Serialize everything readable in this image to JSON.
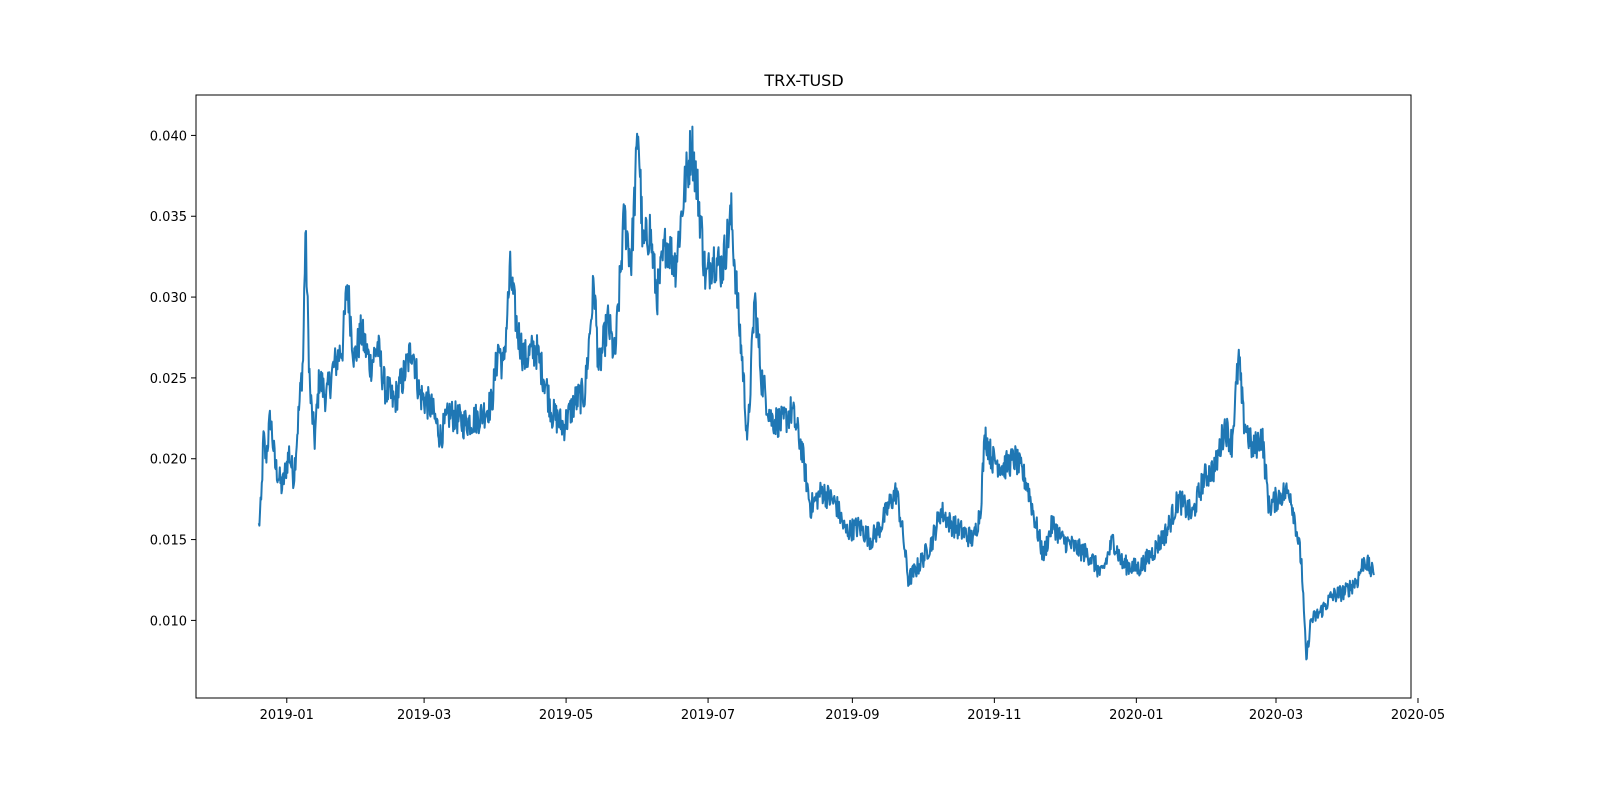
{
  "chart_data": {
    "type": "line",
    "title": "TRX-TUSD",
    "xlabel": "",
    "ylabel": "",
    "x_axis_type": "date",
    "xlim": [
      "2018-11-23",
      "2020-04-28"
    ],
    "ylim": [
      0.0052,
      0.0425
    ],
    "grid": false,
    "legend": "none",
    "x_ticks": [
      "2019-01",
      "2019-03",
      "2019-05",
      "2019-07",
      "2019-09",
      "2019-11",
      "2020-01",
      "2020-03",
      "2020-05"
    ],
    "y_ticks": [
      "0.010",
      "0.015",
      "0.020",
      "0.025",
      "0.030",
      "0.035",
      "0.040"
    ],
    "line_color": "#1f77b4",
    "series": [
      {
        "name": "",
        "points": [
          [
            "2018-12-20",
            0.0158
          ],
          [
            "2018-12-21",
            0.0172
          ],
          [
            "2018-12-22",
            0.0213
          ],
          [
            "2018-12-23",
            0.02
          ],
          [
            "2018-12-25",
            0.0226
          ],
          [
            "2018-12-27",
            0.0196
          ],
          [
            "2018-12-30",
            0.0182
          ],
          [
            "2019-01-02",
            0.0204
          ],
          [
            "2019-01-04",
            0.0188
          ],
          [
            "2019-01-06",
            0.0226
          ],
          [
            "2019-01-08",
            0.0262
          ],
          [
            "2019-01-09",
            0.034
          ],
          [
            "2019-01-11",
            0.024
          ],
          [
            "2019-01-13",
            0.0212
          ],
          [
            "2019-01-15",
            0.025
          ],
          [
            "2019-01-18",
            0.0238
          ],
          [
            "2019-01-21",
            0.0256
          ],
          [
            "2019-01-25",
            0.027
          ],
          [
            "2019-01-27",
            0.0308
          ],
          [
            "2019-01-30",
            0.0262
          ],
          [
            "2019-02-02",
            0.0278
          ],
          [
            "2019-02-06",
            0.0258
          ],
          [
            "2019-02-09",
            0.027
          ],
          [
            "2019-02-12",
            0.0245
          ],
          [
            "2019-02-16",
            0.0235
          ],
          [
            "2019-02-20",
            0.025
          ],
          [
            "2019-02-24",
            0.027
          ],
          [
            "2019-02-27",
            0.024
          ],
          [
            "2019-03-04",
            0.0232
          ],
          [
            "2019-03-08",
            0.0214
          ],
          [
            "2019-03-12",
            0.0228
          ],
          [
            "2019-03-18",
            0.0222
          ],
          [
            "2019-03-25",
            0.0226
          ],
          [
            "2019-03-30",
            0.0234
          ],
          [
            "2019-04-02",
            0.027
          ],
          [
            "2019-04-04",
            0.0255
          ],
          [
            "2019-04-07",
            0.0315
          ],
          [
            "2019-04-10",
            0.028
          ],
          [
            "2019-04-13",
            0.0262
          ],
          [
            "2019-04-18",
            0.0268
          ],
          [
            "2019-04-22",
            0.0248
          ],
          [
            "2019-04-25",
            0.0228
          ],
          [
            "2019-04-30",
            0.022
          ],
          [
            "2019-05-05",
            0.0236
          ],
          [
            "2019-05-09",
            0.024
          ],
          [
            "2019-05-13",
            0.031
          ],
          [
            "2019-05-15",
            0.0255
          ],
          [
            "2019-05-19",
            0.0285
          ],
          [
            "2019-05-22",
            0.0262
          ],
          [
            "2019-05-26",
            0.035
          ],
          [
            "2019-05-29",
            0.0322
          ],
          [
            "2019-06-01",
            0.0405
          ],
          [
            "2019-06-03",
            0.033
          ],
          [
            "2019-06-06",
            0.0342
          ],
          [
            "2019-06-09",
            0.03
          ],
          [
            "2019-06-13",
            0.0335
          ],
          [
            "2019-06-17",
            0.032
          ],
          [
            "2019-06-21",
            0.0368
          ],
          [
            "2019-06-24",
            0.0395
          ],
          [
            "2019-06-27",
            0.036
          ],
          [
            "2019-06-30",
            0.031
          ],
          [
            "2019-07-03",
            0.0325
          ],
          [
            "2019-07-07",
            0.0318
          ],
          [
            "2019-07-11",
            0.035
          ],
          [
            "2019-07-14",
            0.029
          ],
          [
            "2019-07-16",
            0.0255
          ],
          [
            "2019-07-18",
            0.021
          ],
          [
            "2019-07-21",
            0.03
          ],
          [
            "2019-07-24",
            0.025
          ],
          [
            "2019-07-28",
            0.0225
          ],
          [
            "2019-08-02",
            0.0222
          ],
          [
            "2019-08-06",
            0.023
          ],
          [
            "2019-08-10",
            0.0208
          ],
          [
            "2019-08-14",
            0.017
          ],
          [
            "2019-08-19",
            0.018
          ],
          [
            "2019-08-25",
            0.0172
          ],
          [
            "2019-08-29",
            0.0155
          ],
          [
            "2019-09-04",
            0.0158
          ],
          [
            "2019-09-09",
            0.015
          ],
          [
            "2019-09-13",
            0.0158
          ],
          [
            "2019-09-17",
            0.0172
          ],
          [
            "2019-09-20",
            0.018
          ],
          [
            "2019-09-23",
            0.015
          ],
          [
            "2019-09-25",
            0.0125
          ],
          [
            "2019-09-30",
            0.0135
          ],
          [
            "2019-10-05",
            0.0148
          ],
          [
            "2019-10-09",
            0.0168
          ],
          [
            "2019-10-13",
            0.016
          ],
          [
            "2019-10-18",
            0.0155
          ],
          [
            "2019-10-23",
            0.015
          ],
          [
            "2019-10-26",
            0.0168
          ],
          [
            "2019-10-28",
            0.0215
          ],
          [
            "2019-10-31",
            0.02
          ],
          [
            "2019-11-05",
            0.0195
          ],
          [
            "2019-11-10",
            0.02
          ],
          [
            "2019-11-15",
            0.0185
          ],
          [
            "2019-11-18",
            0.0165
          ],
          [
            "2019-11-22",
            0.014
          ],
          [
            "2019-11-26",
            0.016
          ],
          [
            "2019-11-30",
            0.015
          ],
          [
            "2019-12-06",
            0.0145
          ],
          [
            "2019-12-12",
            0.014
          ],
          [
            "2019-12-17",
            0.0128
          ],
          [
            "2019-12-22",
            0.015
          ],
          [
            "2019-12-26",
            0.0135
          ],
          [
            "2020-01-02",
            0.0132
          ],
          [
            "2020-01-08",
            0.0142
          ],
          [
            "2020-01-14",
            0.0155
          ],
          [
            "2020-01-19",
            0.0175
          ],
          [
            "2020-01-25",
            0.0165
          ],
          [
            "2020-01-30",
            0.0188
          ],
          [
            "2020-02-04",
            0.0195
          ],
          [
            "2020-02-08",
            0.022
          ],
          [
            "2020-02-11",
            0.021
          ],
          [
            "2020-02-14",
            0.0262
          ],
          [
            "2020-02-16",
            0.0225
          ],
          [
            "2020-02-20",
            0.0205
          ],
          [
            "2020-02-24",
            0.0215
          ],
          [
            "2020-02-27",
            0.017
          ],
          [
            "2020-03-03",
            0.0178
          ],
          [
            "2020-03-07",
            0.018
          ],
          [
            "2020-03-10",
            0.0155
          ],
          [
            "2020-03-12",
            0.0135
          ],
          [
            "2020-03-14",
            0.0075
          ],
          [
            "2020-03-16",
            0.01
          ],
          [
            "2020-03-20",
            0.0105
          ],
          [
            "2020-03-25",
            0.0115
          ],
          [
            "2020-03-31",
            0.0118
          ],
          [
            "2020-04-05",
            0.0125
          ],
          [
            "2020-04-08",
            0.0138
          ],
          [
            "2020-04-12",
            0.0128
          ]
        ]
      }
    ]
  }
}
